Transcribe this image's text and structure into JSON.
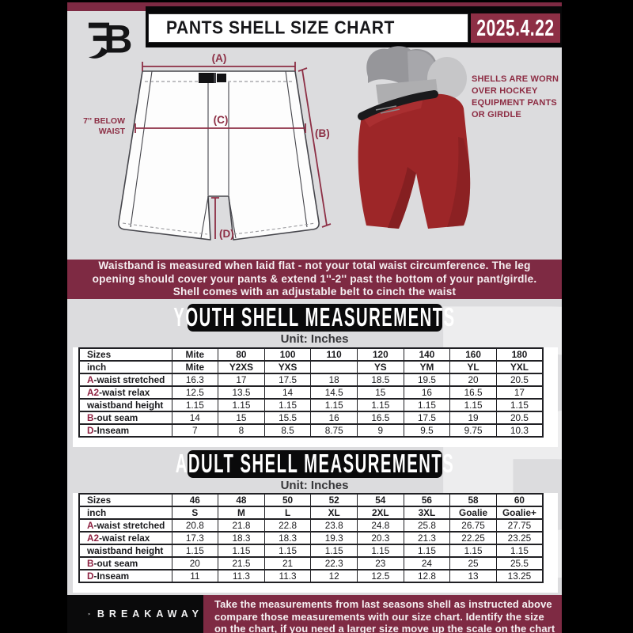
{
  "colors": {
    "maroon": "#7e2a43",
    "maroon_bright": "#8d2f45",
    "page_bg": "#dcdcde",
    "black": "#0a0a0b",
    "shell_red": "#9d2628"
  },
  "header": {
    "title": "PANTS SHELL SIZE CHART",
    "date": "2025.4.22"
  },
  "diagram": {
    "label_a": "(A)",
    "label_b": "(B)",
    "label_c": "(C)",
    "label_d": "(D)",
    "below_waist_1": "7'' BELOW",
    "below_waist_2": "WAIST"
  },
  "photo_note": {
    "lines": [
      "SHELLS ARE WORN",
      "OVER HOCKEY",
      "EQUIPMENT PANTS",
      "OR GIRDLE"
    ]
  },
  "banner": {
    "lines": [
      "Waistband is measured when laid flat - not your total waist circumference. The leg",
      "opening should cover your pants & extend 1''-2'' past the bottom of your pant/girdle.",
      "Shell comes with an adjustable belt to cinch the waist"
    ]
  },
  "youth": {
    "title": "YOUTH SHELL MEASUREMENTS",
    "unit": "Unit: Inches",
    "table": {
      "rows": [
        {
          "prefix": "",
          "label": "Sizes",
          "header": true,
          "cells": [
            "Mite",
            "80",
            "100",
            "110",
            "120",
            "140",
            "160",
            "180"
          ]
        },
        {
          "prefix": "",
          "label": "inch",
          "header": true,
          "cells": [
            "Mite",
            "Y2XS",
            "YXS",
            "",
            "YS",
            "YM",
            "YL",
            "YXL"
          ]
        },
        {
          "prefix": "A",
          "label": "-waist stretched",
          "header": false,
          "cells": [
            "16.3",
            "17",
            "17.5",
            "18",
            "18.5",
            "19.5",
            "20",
            "20.5"
          ]
        },
        {
          "prefix": "A2",
          "label": "-waist relax",
          "header": false,
          "cells": [
            "12.5",
            "13.5",
            "14",
            "14.5",
            "15",
            "16",
            "16.5",
            "17"
          ]
        },
        {
          "prefix": "",
          "label": "waistband height",
          "header": false,
          "cells": [
            "1.15",
            "1.15",
            "1.15",
            "1.15",
            "1.15",
            "1.15",
            "1.15",
            "1.15"
          ]
        },
        {
          "prefix": "B",
          "label": "-out seam",
          "header": false,
          "cells": [
            "14",
            "15",
            "15.5",
            "16",
            "16.5",
            "17.5",
            "19",
            "20.5"
          ]
        },
        {
          "prefix": "D",
          "label": "-Inseam",
          "header": false,
          "cells": [
            "7",
            "8",
            "8.5",
            "8.75",
            "9",
            "9.5",
            "9.75",
            "10.3"
          ]
        }
      ]
    }
  },
  "adult": {
    "title": "ADULT SHELL MEASUREMENTS",
    "unit": "Unit: Inches",
    "table": {
      "rows": [
        {
          "prefix": "",
          "label": "Sizes",
          "header": true,
          "cells": [
            "46",
            "48",
            "50",
            "52",
            "54",
            "56",
            "58",
            "60"
          ]
        },
        {
          "prefix": "",
          "label": "inch",
          "header": true,
          "cells": [
            "S",
            "M",
            "L",
            "XL",
            "2XL",
            "3XL",
            "Goalie",
            "Goalie+"
          ]
        },
        {
          "prefix": "A",
          "label": "-waist stretched",
          "header": false,
          "cells": [
            "20.8",
            "21.8",
            "22.8",
            "23.8",
            "24.8",
            "25.8",
            "26.75",
            "27.75"
          ]
        },
        {
          "prefix": "A2",
          "label": "-waist relax",
          "header": false,
          "cells": [
            "17.3",
            "18.3",
            "18.3",
            "19.3",
            "20.3",
            "21.3",
            "22.25",
            "23.25"
          ]
        },
        {
          "prefix": "",
          "label": "waistband height",
          "header": false,
          "cells": [
            "1.15",
            "1.15",
            "1.15",
            "1.15",
            "1.15",
            "1.15",
            "1.15",
            "1.15"
          ]
        },
        {
          "prefix": "B",
          "label": "-out seam",
          "header": false,
          "cells": [
            "20",
            "21.5",
            "21",
            "22.3",
            "23",
            "24",
            "25",
            "25.5"
          ]
        },
        {
          "prefix": "D",
          "label": "-Inseam",
          "header": false,
          "cells": [
            "11",
            "11.3",
            "11.3",
            "12",
            "12.5",
            "12.8",
            "13",
            "13.25"
          ]
        }
      ]
    }
  },
  "footer": {
    "brand": "BREAKAWAY",
    "lines": [
      "Take the measurements from last seasons shell as instructed above",
      "compare those measurements  with our size chart. Identify the size",
      "on the chart, if you need a larger size move up the scale on the chart"
    ]
  },
  "watermark": "B"
}
